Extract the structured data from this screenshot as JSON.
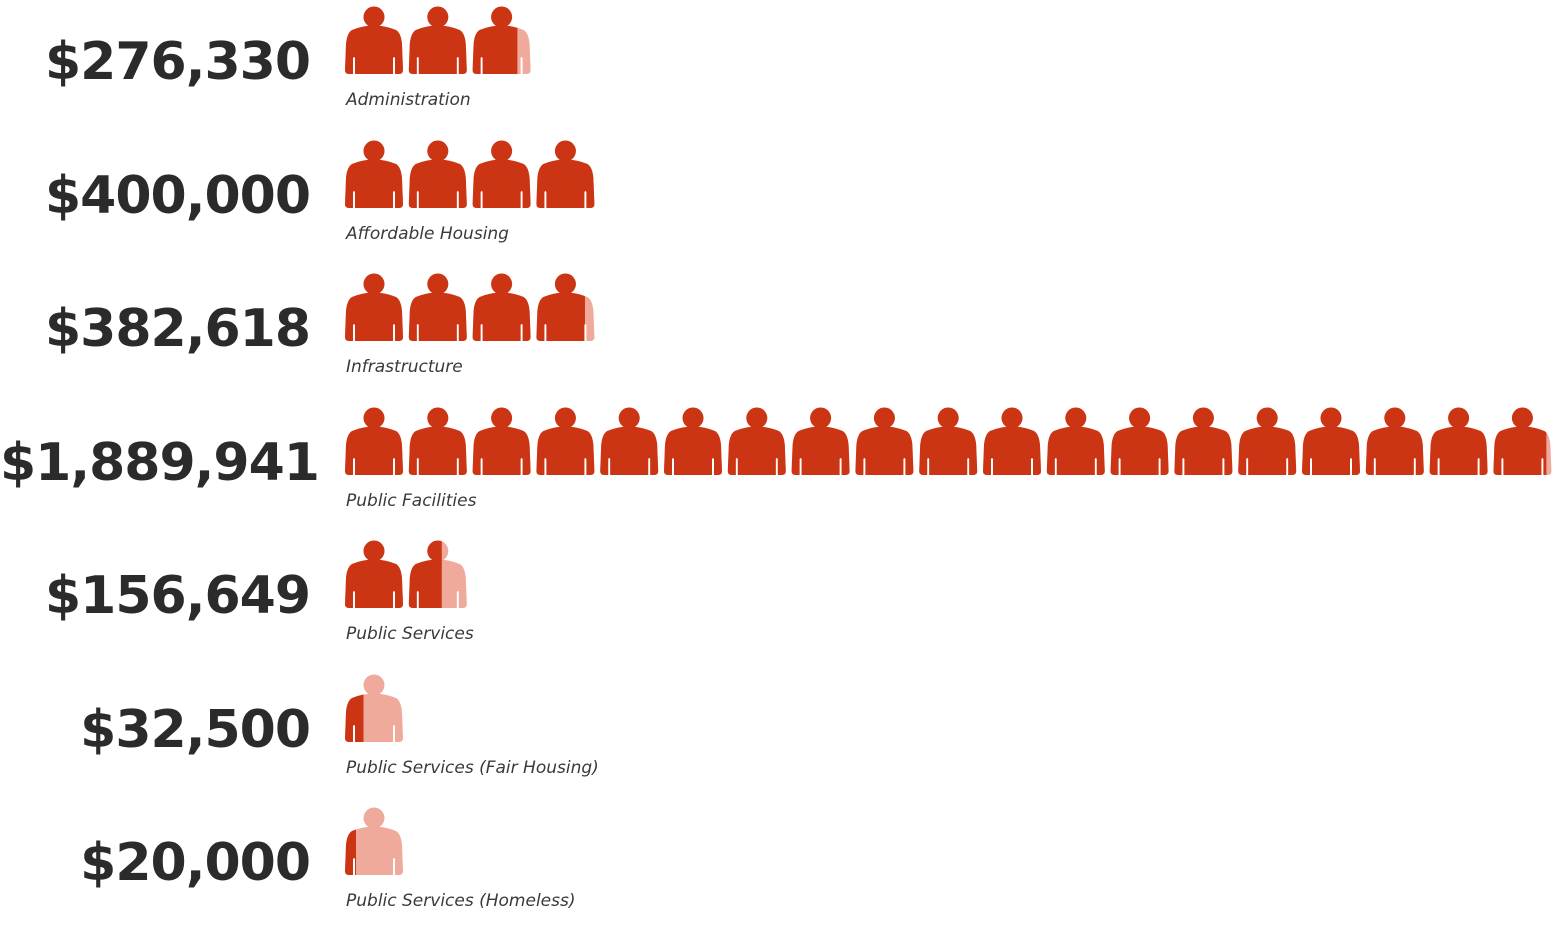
{
  "chart_data": {
    "type": "pictograph",
    "unit_per_icon": 100000,
    "colors": {
      "icon_full": "#cc3514",
      "icon_empty": "#f0aa9b",
      "amount_text": "#2b2b2b",
      "category_text": "#3a3a3a"
    },
    "icon": "person-icon",
    "rows": [
      {
        "amount_label": "$276,330",
        "category": "Administration",
        "value": 276330
      },
      {
        "amount_label": "$400,000",
        "category": "Affordable Housing",
        "value": 400000
      },
      {
        "amount_label": "$382,618",
        "category": "Infrastructure",
        "value": 382618
      },
      {
        "amount_label": "$1,889,941",
        "category": "Public Facilities",
        "value": 1889941
      },
      {
        "amount_label": "$156,649",
        "category": "Public Services",
        "value": 156649
      },
      {
        "amount_label": "$32,500",
        "category": "Public Services (Fair Housing)",
        "value": 32500
      },
      {
        "amount_label": "$20,000",
        "category": "Public Services (Homeless)",
        "value": 20000
      }
    ]
  }
}
